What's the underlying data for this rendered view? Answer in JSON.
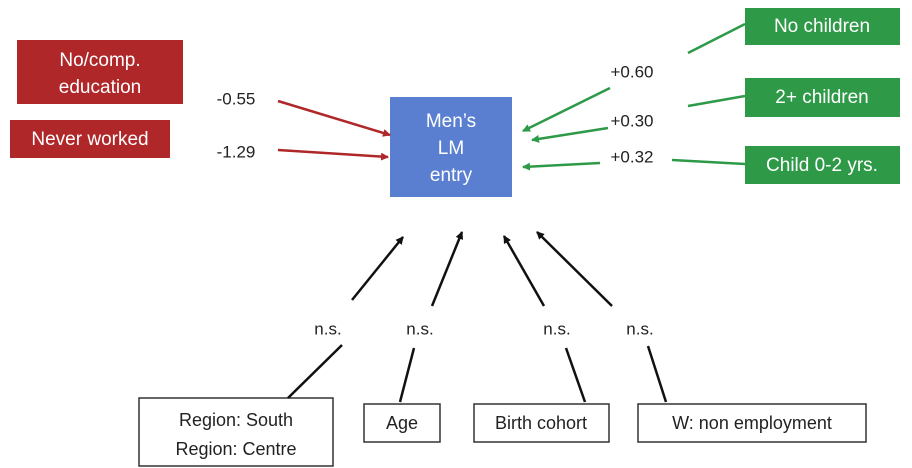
{
  "outcome": {
    "lines": [
      "Men’s",
      "LM",
      "entry"
    ]
  },
  "negative_factors": [
    {
      "lines": [
        "No/comp.",
        "education"
      ],
      "effect": "-0.55"
    },
    {
      "lines": [
        "Never worked"
      ],
      "effect": "-1.29"
    }
  ],
  "positive_factors": [
    {
      "lines": [
        "No children"
      ],
      "effect": "+0.60"
    },
    {
      "lines": [
        "2+ children"
      ],
      "effect": "+0.30"
    },
    {
      "lines": [
        "Child 0-2 yrs."
      ],
      "effect": "+0.32"
    }
  ],
  "non_significant_factors": [
    {
      "lines": [
        "Region: South",
        "Region: Centre"
      ],
      "effect": "n.s."
    },
    {
      "lines": [
        "Age"
      ],
      "effect": "n.s."
    },
    {
      "lines": [
        "Birth cohort"
      ],
      "effect": "n.s."
    },
    {
      "lines": [
        "W: non employment"
      ],
      "effect": "n.s."
    }
  ]
}
